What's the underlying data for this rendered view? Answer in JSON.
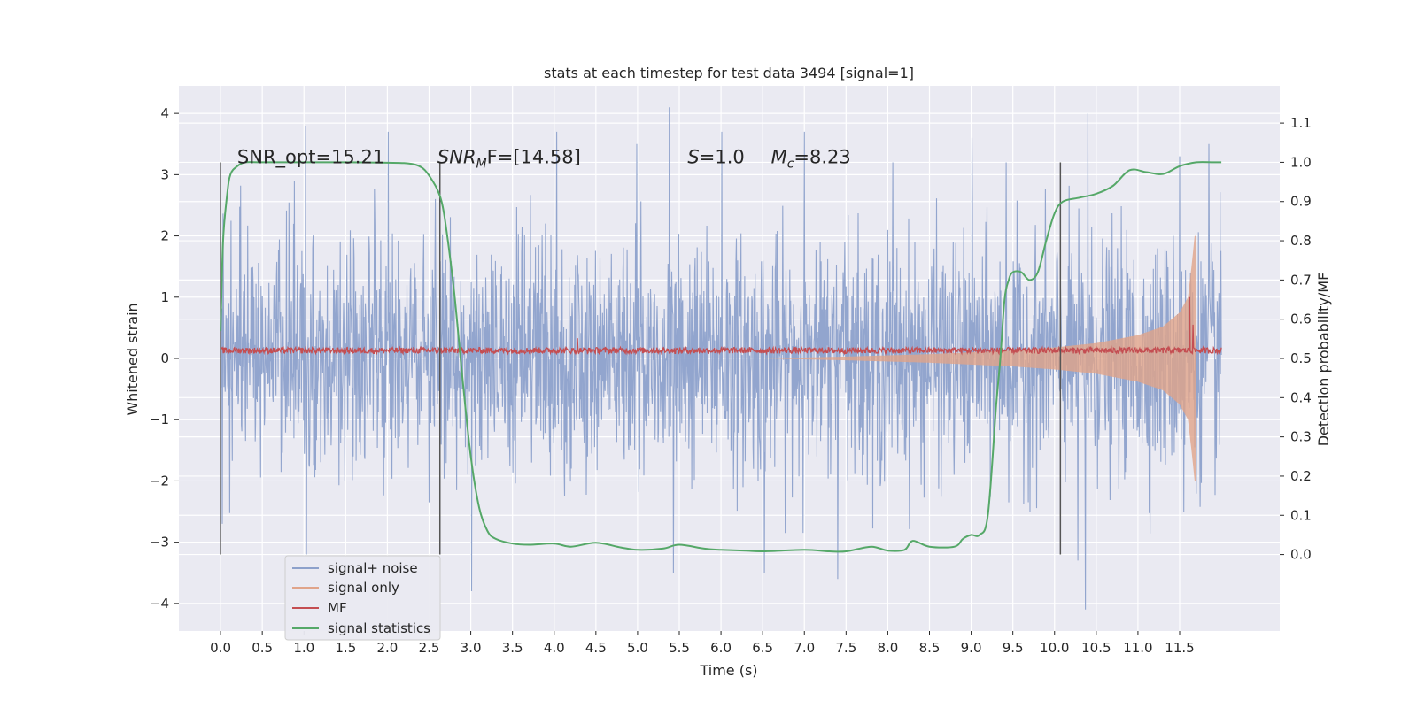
{
  "chart_data": {
    "type": "line",
    "title": "stats at each timestep for test data 3494 [signal=1]",
    "xlabel": "Time (s)",
    "ylabel": "Whitened strain",
    "y2label": "Detection probability/MF",
    "xlim": [
      -0.5,
      12.7
    ],
    "ylim": [
      -4.45,
      4.45
    ],
    "y2lim": [
      -0.195,
      1.195
    ],
    "xticks": [
      0.0,
      0.5,
      1.0,
      1.5,
      2.0,
      2.5,
      3.0,
      3.5,
      4.0,
      4.5,
      5.0,
      5.5,
      6.0,
      6.5,
      7.0,
      7.5,
      8.0,
      8.5,
      9.0,
      9.5,
      10.0,
      10.5,
      11.0,
      11.5
    ],
    "xtick_labels": [
      "0.0",
      "0.5",
      "1.0",
      "1.5",
      "2.0",
      "2.5",
      "3.0",
      "3.5",
      "4.0",
      "4.5",
      "5.0",
      "5.5",
      "6.0",
      "6.5",
      "7.0",
      "7.5",
      "8.0",
      "8.5",
      "9.0",
      "9.5",
      "10.0",
      "10.5",
      "11.0",
      "11.5"
    ],
    "yticks": [
      -4,
      -3,
      -2,
      -1,
      0,
      1,
      2,
      3,
      4
    ],
    "ytick_labels": [
      "−4",
      "−3",
      "−2",
      "−1",
      "0",
      "1",
      "2",
      "3",
      "4"
    ],
    "y2ticks": [
      0.0,
      0.1,
      0.2,
      0.3,
      0.4,
      0.5,
      0.6,
      0.7,
      0.8,
      0.9,
      1.0,
      1.1
    ],
    "y2tick_labels": [
      "0.0",
      "0.1",
      "0.2",
      "0.3",
      "0.4",
      "0.5",
      "0.6",
      "0.7",
      "0.8",
      "0.9",
      "1.0",
      "1.1"
    ],
    "grid": true,
    "legend_placement": "lower-left",
    "annotations": [
      {
        "x": 0.2,
        "y": 3.3,
        "prefix": "SNR_opt",
        "sub": "",
        "suffix": "=15.21",
        "italic": false
      },
      {
        "x": 2.6,
        "y": 3.3,
        "prefix": "SNR",
        "sub": "M",
        "suffix": "F=[14.58]",
        "italic": true
      },
      {
        "x": 5.6,
        "y": 3.3,
        "prefix": "S",
        "sub": "",
        "suffix": "=1.0",
        "italic": true
      },
      {
        "x": 6.6,
        "y": 3.3,
        "prefix": "M",
        "sub": "c",
        "suffix": "=8.23",
        "italic": true
      }
    ],
    "vlines": [
      {
        "x": 0.0,
        "y1": -3.2,
        "y2": 3.2
      },
      {
        "x": 2.63,
        "y1": -3.2,
        "y2": 3.2
      },
      {
        "x": 10.07,
        "y1": -3.2,
        "y2": 3.2
      }
    ],
    "series": [
      {
        "name": "signal+ noise",
        "color": "#8da1cb",
        "x_range": [
          0.0,
          12.0
        ],
        "noise_sigma": 0.95,
        "peak_times": [
          1.02,
          2.01,
          3.01,
          4.03,
          4.99,
          5.38,
          6.01,
          7.0,
          8.06,
          9.01,
          9.42,
          10.4,
          11.5,
          11.85
        ],
        "peak_values": [
          3.8,
          3.7,
          -3.8,
          3.7,
          3.5,
          4.1,
          3.7,
          3.7,
          3.2,
          3.6,
          3.2,
          4.0,
          3.3,
          3.5
        ],
        "trough_times": [
          0.02,
          1.03,
          5.43,
          6.52,
          7.4,
          10.28,
          10.37,
          11.55
        ],
        "trough_values": [
          -2.7,
          -3.2,
          -3.5,
          -3.5,
          -3.6,
          -3.3,
          -4.1,
          -2.5
        ]
      },
      {
        "name": "signal only",
        "color": "#e0a48a",
        "envelope_x": [
          7.5,
          8.0,
          8.5,
          9.0,
          9.5,
          10.0,
          10.5,
          11.0,
          11.3,
          11.5,
          11.6,
          11.65,
          11.68
        ],
        "envelope_amp": [
          0.03,
          0.05,
          0.07,
          0.1,
          0.13,
          0.18,
          0.25,
          0.38,
          0.52,
          0.75,
          1.0,
          1.6,
          2.0
        ],
        "end": 11.7
      },
      {
        "name": "MF",
        "color": "#c44e52",
        "x_range": [
          0.0,
          12.0
        ],
        "base": 0.13,
        "spread": 0.05,
        "spikes": [
          {
            "x": 4.28,
            "y": 0.33
          },
          {
            "x": 11.62,
            "y": 1.0
          },
          {
            "x": 11.66,
            "y": 0.55
          }
        ]
      },
      {
        "name": "signal statistics",
        "color": "#55a868",
        "x": [
          0.0,
          0.03,
          0.08,
          0.12,
          0.2,
          0.3,
          0.5,
          1.0,
          1.5,
          2.0,
          2.2,
          2.35,
          2.45,
          2.55,
          2.6,
          2.65,
          2.7,
          2.8,
          2.9,
          3.0,
          3.1,
          3.2,
          3.3,
          3.5,
          3.7,
          4.0,
          4.2,
          4.5,
          4.8,
          5.0,
          5.3,
          5.5,
          5.8,
          6.0,
          6.3,
          6.5,
          7.0,
          7.3,
          7.5,
          7.8,
          8.0,
          8.2,
          8.3,
          8.5,
          8.8,
          8.9,
          9.0,
          9.1,
          9.2,
          9.3,
          9.35,
          9.4,
          9.45,
          9.5,
          9.6,
          9.7,
          9.8,
          9.9,
          10.0,
          10.1,
          10.3,
          10.5,
          10.7,
          10.9,
          11.1,
          11.3,
          11.5,
          11.7,
          11.9,
          12.0
        ],
        "y": [
          0.57,
          0.8,
          0.92,
          0.97,
          0.99,
          1.0,
          1.0,
          1.0,
          1.0,
          0.999,
          0.998,
          0.993,
          0.98,
          0.95,
          0.93,
          0.9,
          0.84,
          0.67,
          0.45,
          0.25,
          0.12,
          0.06,
          0.04,
          0.028,
          0.025,
          0.028,
          0.02,
          0.03,
          0.018,
          0.012,
          0.015,
          0.025,
          0.015,
          0.012,
          0.01,
          0.008,
          0.012,
          0.008,
          0.008,
          0.02,
          0.01,
          0.012,
          0.035,
          0.02,
          0.02,
          0.04,
          0.05,
          0.05,
          0.1,
          0.38,
          0.5,
          0.65,
          0.7,
          0.72,
          0.72,
          0.7,
          0.72,
          0.8,
          0.87,
          0.9,
          0.91,
          0.92,
          0.94,
          0.98,
          0.975,
          0.97,
          0.99,
          1.0,
          1.0,
          1.0
        ]
      }
    ]
  }
}
